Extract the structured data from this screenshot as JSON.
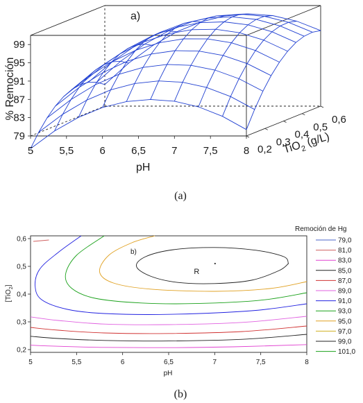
{
  "panels": {
    "a_caption": "(a)",
    "b_caption": "(b)"
  },
  "chart_data": [
    {
      "type": "surface",
      "panel_label": "a)",
      "xlabel": "pH",
      "ylabel": "TiO2 (g/L)",
      "ylabel_main": "TiO",
      "ylabel_sub": "2",
      "ylabel_tail": " (g/L)",
      "zlabel": "% Remoción",
      "x_ticks": [
        "5",
        "5,5",
        "6",
        "6,5",
        "7",
        "7,5",
        "8"
      ],
      "y_ticks": [
        "0,2",
        "0,3",
        "0,4",
        "0,5",
        "0,6"
      ],
      "z_ticks": [
        "79",
        "83",
        "87",
        "91",
        "95",
        "99"
      ],
      "xlim": [
        5,
        8
      ],
      "ylim": [
        0.2,
        0.6
      ],
      "zlim": [
        79,
        101
      ],
      "grid_x": [
        5,
        5.333,
        5.667,
        6,
        6.333,
        6.667,
        7,
        7.333,
        7.667,
        8
      ],
      "grid_y": [
        0.2,
        0.244,
        0.289,
        0.333,
        0.378,
        0.422,
        0.467,
        0.511,
        0.556,
        0.6
      ],
      "surface_color": "#1f3fd1"
    },
    {
      "type": "contour",
      "panel_label": "b)",
      "xlabel": "pH",
      "ylabel_main": "[TiO",
      "ylabel_sub": "2",
      "ylabel_tail": "]",
      "x_ticks": [
        "5",
        "5,5",
        "6",
        "6,5",
        "7",
        "7,5",
        "8"
      ],
      "y_ticks": [
        "0,2",
        "0,3",
        "0,4",
        "0,5",
        "0,6"
      ],
      "xlim": [
        5,
        8
      ],
      "ylim": [
        0.19,
        0.61
      ],
      "optimum": {
        "label": "R",
        "x": 7.0,
        "y": 0.51
      },
      "legend_title": "Remoción de Hg",
      "legend_position": "right",
      "levels": [
        {
          "label": "79,0",
          "value": 79,
          "color": "#4b64c8"
        },
        {
          "label": "81,0",
          "value": 81,
          "color": "#d06060"
        },
        {
          "label": "83,0",
          "value": 83,
          "color": "#e040d0"
        },
        {
          "label": "85,0",
          "value": 85,
          "color": "#222222"
        },
        {
          "label": "87,0",
          "value": 87,
          "color": "#d03030"
        },
        {
          "label": "89,0",
          "value": 89,
          "color": "#e060e0"
        },
        {
          "label": "91,0",
          "value": 91,
          "color": "#2020e0"
        },
        {
          "label": "93,0",
          "value": 93,
          "color": "#18a018"
        },
        {
          "label": "95,0",
          "value": 95,
          "color": "#e0a020"
        },
        {
          "label": "97,0",
          "value": 97,
          "color": "#d0b020"
        },
        {
          "label": "99,0",
          "value": 99,
          "color": "#202020"
        },
        {
          "label": "101,0",
          "value": 101,
          "color": "#18a018"
        }
      ],
      "drawn_contours": [
        {
          "name": "81",
          "color": "#d06060"
        },
        {
          "name": "83",
          "color": "#e040d0"
        },
        {
          "name": "85",
          "color": "#222222"
        },
        {
          "name": "87",
          "color": "#d03030"
        },
        {
          "name": "89",
          "color": "#e060e0"
        },
        {
          "name": "91",
          "color": "#2020e0"
        },
        {
          "name": "93",
          "color": "#18a018"
        },
        {
          "name": "95",
          "color": "#e0a020"
        },
        {
          "name": "99",
          "color": "#202020"
        }
      ]
    }
  ]
}
